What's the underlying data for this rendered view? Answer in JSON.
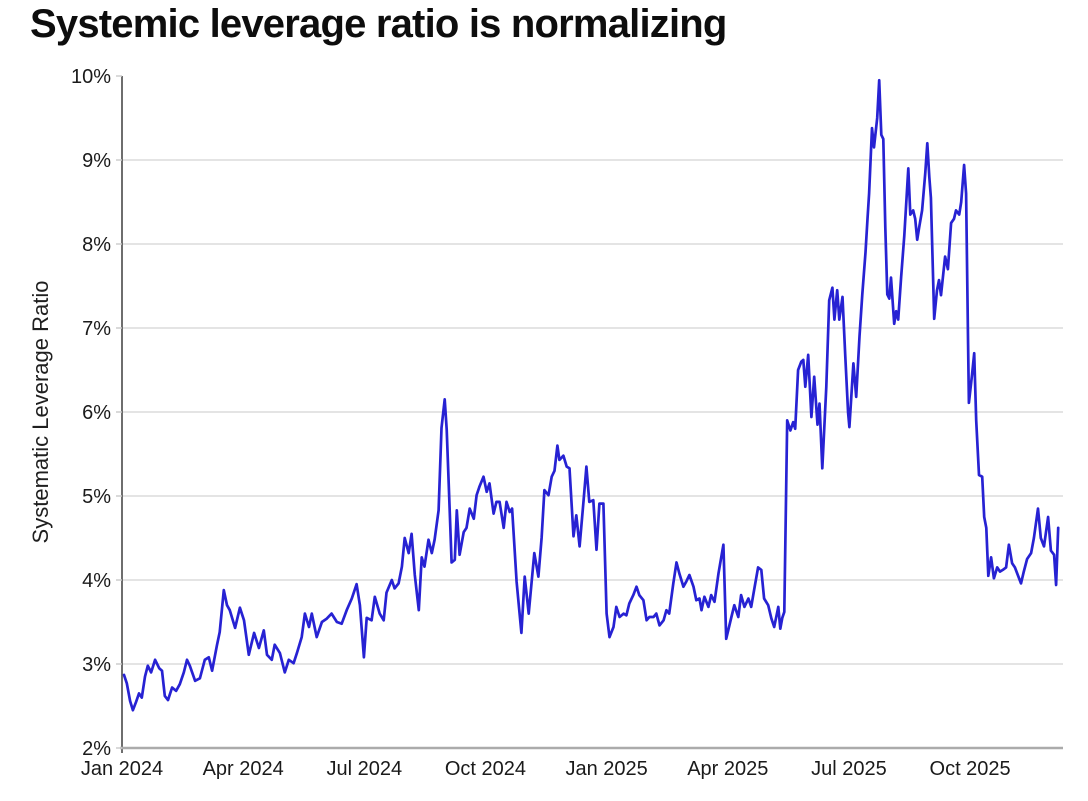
{
  "title": "Systemic leverage ratio is normalizing",
  "colors": {
    "line": "#2722d3",
    "grid": "#e4e4e4",
    "y_axis": "#4a4a4a",
    "x_axis": "#ababab",
    "tick": "#c9c9c9",
    "text": "#1a1a1a",
    "background": "#ffffff"
  },
  "chart_data": {
    "type": "line",
    "title": "Systemic leverage ratio is normalizing",
    "xlabel": "",
    "ylabel": "Systematic Leverage Ratio",
    "x_unit": "months since Jan 2024",
    "xlim": [
      0,
      23.3
    ],
    "ylim": [
      2,
      10
    ],
    "grid": "horizontal gridlines at each 1% from 3% to 9%",
    "legend": "none",
    "x_ticks": [
      {
        "t": 0,
        "label": "Jan 2024"
      },
      {
        "t": 3,
        "label": "Apr 2024"
      },
      {
        "t": 6,
        "label": "Jul 2024"
      },
      {
        "t": 9,
        "label": "Oct 2024"
      },
      {
        "t": 12,
        "label": "Jan 2025"
      },
      {
        "t": 15,
        "label": "Apr 2025"
      },
      {
        "t": 18,
        "label": "Jul 2025"
      },
      {
        "t": 21,
        "label": "Oct 2025"
      }
    ],
    "y_ticks": [
      {
        "v": 2,
        "label": "2%"
      },
      {
        "v": 3,
        "label": "3%"
      },
      {
        "v": 4,
        "label": "4%"
      },
      {
        "v": 5,
        "label": "5%"
      },
      {
        "v": 6,
        "label": "6%"
      },
      {
        "v": 7,
        "label": "7%"
      },
      {
        "v": 8,
        "label": "8%"
      },
      {
        "v": 9,
        "label": "9%"
      },
      {
        "v": 10,
        "label": "10%"
      }
    ],
    "series": [
      {
        "name": "Systematic Leverage Ratio",
        "color": "#2722d3",
        "points": [
          [
            0.05,
            2.87
          ],
          [
            0.12,
            2.77
          ],
          [
            0.2,
            2.56
          ],
          [
            0.27,
            2.45
          ],
          [
            0.35,
            2.55
          ],
          [
            0.42,
            2.65
          ],
          [
            0.49,
            2.6
          ],
          [
            0.57,
            2.85
          ],
          [
            0.64,
            2.98
          ],
          [
            0.72,
            2.9
          ],
          [
            0.82,
            3.05
          ],
          [
            0.92,
            2.95
          ],
          [
            0.99,
            2.92
          ],
          [
            1.06,
            2.62
          ],
          [
            1.14,
            2.57
          ],
          [
            1.24,
            2.72
          ],
          [
            1.34,
            2.68
          ],
          [
            1.43,
            2.76
          ],
          [
            1.53,
            2.9
          ],
          [
            1.61,
            3.05
          ],
          [
            1.68,
            2.98
          ],
          [
            1.81,
            2.8
          ],
          [
            1.93,
            2.83
          ],
          [
            2.05,
            3.05
          ],
          [
            2.15,
            3.08
          ],
          [
            2.23,
            2.92
          ],
          [
            2.35,
            3.22
          ],
          [
            2.42,
            3.38
          ],
          [
            2.52,
            3.88
          ],
          [
            2.6,
            3.7
          ],
          [
            2.67,
            3.64
          ],
          [
            2.8,
            3.43
          ],
          [
            2.92,
            3.67
          ],
          [
            3.02,
            3.52
          ],
          [
            3.14,
            3.11
          ],
          [
            3.27,
            3.37
          ],
          [
            3.39,
            3.19
          ],
          [
            3.51,
            3.4
          ],
          [
            3.59,
            3.11
          ],
          [
            3.71,
            3.05
          ],
          [
            3.78,
            3.23
          ],
          [
            3.91,
            3.13
          ],
          [
            4.03,
            2.9
          ],
          [
            4.13,
            3.05
          ],
          [
            4.25,
            3.01
          ],
          [
            4.33,
            3.13
          ],
          [
            4.45,
            3.32
          ],
          [
            4.53,
            3.6
          ],
          [
            4.63,
            3.44
          ],
          [
            4.7,
            3.6
          ],
          [
            4.82,
            3.32
          ],
          [
            4.95,
            3.5
          ],
          [
            5.07,
            3.54
          ],
          [
            5.19,
            3.6
          ],
          [
            5.32,
            3.5
          ],
          [
            5.44,
            3.48
          ],
          [
            5.57,
            3.65
          ],
          [
            5.69,
            3.78
          ],
          [
            5.81,
            3.95
          ],
          [
            5.89,
            3.7
          ],
          [
            5.99,
            3.08
          ],
          [
            6.06,
            3.55
          ],
          [
            6.18,
            3.52
          ],
          [
            6.26,
            3.8
          ],
          [
            6.38,
            3.6
          ],
          [
            6.48,
            3.52
          ],
          [
            6.55,
            3.85
          ],
          [
            6.68,
            4.0
          ],
          [
            6.75,
            3.9
          ],
          [
            6.85,
            3.96
          ],
          [
            6.93,
            4.16
          ],
          [
            7.0,
            4.5
          ],
          [
            7.1,
            4.32
          ],
          [
            7.17,
            4.55
          ],
          [
            7.25,
            4.06
          ],
          [
            7.35,
            3.64
          ],
          [
            7.42,
            4.27
          ],
          [
            7.49,
            4.16
          ],
          [
            7.59,
            4.48
          ],
          [
            7.67,
            4.32
          ],
          [
            7.74,
            4.48
          ],
          [
            7.84,
            4.83
          ],
          [
            7.91,
            5.81
          ],
          [
            7.99,
            6.15
          ],
          [
            8.04,
            5.79
          ],
          [
            8.09,
            5.15
          ],
          [
            8.16,
            4.21
          ],
          [
            8.24,
            4.24
          ],
          [
            8.29,
            4.83
          ],
          [
            8.36,
            4.3
          ],
          [
            8.46,
            4.57
          ],
          [
            8.53,
            4.62
          ],
          [
            8.61,
            4.85
          ],
          [
            8.71,
            4.73
          ],
          [
            8.78,
            5.01
          ],
          [
            8.85,
            5.11
          ],
          [
            8.95,
            5.23
          ],
          [
            9.03,
            5.05
          ],
          [
            9.1,
            5.15
          ],
          [
            9.2,
            4.79
          ],
          [
            9.27,
            4.93
          ],
          [
            9.35,
            4.93
          ],
          [
            9.45,
            4.62
          ],
          [
            9.52,
            4.93
          ],
          [
            9.6,
            4.81
          ],
          [
            9.66,
            4.85
          ],
          [
            9.77,
            3.98
          ],
          [
            9.89,
            3.37
          ],
          [
            9.97,
            4.04
          ],
          [
            10.07,
            3.6
          ],
          [
            10.21,
            4.32
          ],
          [
            10.31,
            4.04
          ],
          [
            10.39,
            4.5
          ],
          [
            10.46,
            5.07
          ],
          [
            10.56,
            5.01
          ],
          [
            10.64,
            5.23
          ],
          [
            10.71,
            5.3
          ],
          [
            10.78,
            5.6
          ],
          [
            10.83,
            5.43
          ],
          [
            10.93,
            5.48
          ],
          [
            11.01,
            5.35
          ],
          [
            11.08,
            5.33
          ],
          [
            11.18,
            4.52
          ],
          [
            11.25,
            4.77
          ],
          [
            11.33,
            4.4
          ],
          [
            11.43,
            4.95
          ],
          [
            11.5,
            5.35
          ],
          [
            11.57,
            4.93
          ],
          [
            11.67,
            4.95
          ],
          [
            11.75,
            4.36
          ],
          [
            11.82,
            4.91
          ],
          [
            11.92,
            4.91
          ],
          [
            12.0,
            3.6
          ],
          [
            12.07,
            3.32
          ],
          [
            12.17,
            3.44
          ],
          [
            12.24,
            3.68
          ],
          [
            12.32,
            3.56
          ],
          [
            12.42,
            3.6
          ],
          [
            12.49,
            3.58
          ],
          [
            12.56,
            3.72
          ],
          [
            12.66,
            3.82
          ],
          [
            12.74,
            3.92
          ],
          [
            12.81,
            3.82
          ],
          [
            12.91,
            3.76
          ],
          [
            12.99,
            3.52
          ],
          [
            13.06,
            3.56
          ],
          [
            13.16,
            3.56
          ],
          [
            13.23,
            3.6
          ],
          [
            13.31,
            3.46
          ],
          [
            13.41,
            3.52
          ],
          [
            13.48,
            3.64
          ],
          [
            13.55,
            3.6
          ],
          [
            13.65,
            3.96
          ],
          [
            13.73,
            4.21
          ],
          [
            13.8,
            4.08
          ],
          [
            13.9,
            3.92
          ],
          [
            13.97,
            3.98
          ],
          [
            14.05,
            4.06
          ],
          [
            14.15,
            3.92
          ],
          [
            14.22,
            3.76
          ],
          [
            14.3,
            3.78
          ],
          [
            14.35,
            3.64
          ],
          [
            14.42,
            3.8
          ],
          [
            14.52,
            3.68
          ],
          [
            14.59,
            3.82
          ],
          [
            14.67,
            3.74
          ],
          [
            14.77,
            4.08
          ],
          [
            14.89,
            4.42
          ],
          [
            14.96,
            3.3
          ],
          [
            15.09,
            3.56
          ],
          [
            15.16,
            3.7
          ],
          [
            15.26,
            3.56
          ],
          [
            15.33,
            3.82
          ],
          [
            15.41,
            3.68
          ],
          [
            15.51,
            3.78
          ],
          [
            15.58,
            3.68
          ],
          [
            15.66,
            3.9
          ],
          [
            15.75,
            4.15
          ],
          [
            15.83,
            4.12
          ],
          [
            15.9,
            3.78
          ],
          [
            16.0,
            3.7
          ],
          [
            16.08,
            3.54
          ],
          [
            16.15,
            3.44
          ],
          [
            16.25,
            3.68
          ],
          [
            16.3,
            3.42
          ],
          [
            16.35,
            3.55
          ],
          [
            16.4,
            3.62
          ],
          [
            16.47,
            5.9
          ],
          [
            16.55,
            5.78
          ],
          [
            16.62,
            5.88
          ],
          [
            16.67,
            5.8
          ],
          [
            16.74,
            6.5
          ],
          [
            16.82,
            6.6
          ],
          [
            16.87,
            6.62
          ],
          [
            16.92,
            6.3
          ],
          [
            16.99,
            6.68
          ],
          [
            17.07,
            5.94
          ],
          [
            17.14,
            6.42
          ],
          [
            17.22,
            5.85
          ],
          [
            17.27,
            6.1
          ],
          [
            17.34,
            5.33
          ],
          [
            17.44,
            6.3
          ],
          [
            17.51,
            7.33
          ],
          [
            17.59,
            7.48
          ],
          [
            17.64,
            7.1
          ],
          [
            17.71,
            7.45
          ],
          [
            17.76,
            7.1
          ],
          [
            17.84,
            7.37
          ],
          [
            17.91,
            6.66
          ],
          [
            17.98,
            5.99
          ],
          [
            18.01,
            5.82
          ],
          [
            18.11,
            6.58
          ],
          [
            18.18,
            6.18
          ],
          [
            18.26,
            6.9
          ],
          [
            18.33,
            7.4
          ],
          [
            18.41,
            7.9
          ],
          [
            18.46,
            8.3
          ],
          [
            18.5,
            8.6
          ],
          [
            18.57,
            9.38
          ],
          [
            18.62,
            9.15
          ],
          [
            18.7,
            9.5
          ],
          [
            18.75,
            9.95
          ],
          [
            18.8,
            9.3
          ],
          [
            18.85,
            9.25
          ],
          [
            18.9,
            8.2
          ],
          [
            18.95,
            7.4
          ],
          [
            19.0,
            7.35
          ],
          [
            19.04,
            7.6
          ],
          [
            19.12,
            7.05
          ],
          [
            19.17,
            7.2
          ],
          [
            19.22,
            7.1
          ],
          [
            19.29,
            7.6
          ],
          [
            19.37,
            8.1
          ],
          [
            19.47,
            8.9
          ],
          [
            19.52,
            8.35
          ],
          [
            19.59,
            8.4
          ],
          [
            19.64,
            8.3
          ],
          [
            19.69,
            8.05
          ],
          [
            19.74,
            8.2
          ],
          [
            19.81,
            8.4
          ],
          [
            19.89,
            8.85
          ],
          [
            19.94,
            9.2
          ],
          [
            19.99,
            8.8
          ],
          [
            20.03,
            8.55
          ],
          [
            20.11,
            7.11
          ],
          [
            20.18,
            7.45
          ],
          [
            20.23,
            7.57
          ],
          [
            20.28,
            7.39
          ],
          [
            20.38,
            7.85
          ],
          [
            20.45,
            7.7
          ],
          [
            20.53,
            8.25
          ],
          [
            20.6,
            8.3
          ],
          [
            20.65,
            8.4
          ],
          [
            20.73,
            8.35
          ],
          [
            20.78,
            8.5
          ],
          [
            20.85,
            8.94
          ],
          [
            20.9,
            8.6
          ],
          [
            20.95,
            6.8
          ],
          [
            20.97,
            6.11
          ],
          [
            21.05,
            6.45
          ],
          [
            21.1,
            6.7
          ],
          [
            21.15,
            5.9
          ],
          [
            21.22,
            5.25
          ],
          [
            21.3,
            5.23
          ],
          [
            21.35,
            4.75
          ],
          [
            21.4,
            4.62
          ],
          [
            21.45,
            4.05
          ],
          [
            21.52,
            4.27
          ],
          [
            21.59,
            4.02
          ],
          [
            21.67,
            4.15
          ],
          [
            21.74,
            4.1
          ],
          [
            21.81,
            4.12
          ],
          [
            21.89,
            4.15
          ],
          [
            21.96,
            4.42
          ],
          [
            22.04,
            4.2
          ],
          [
            22.11,
            4.15
          ],
          [
            22.18,
            4.06
          ],
          [
            22.26,
            3.96
          ],
          [
            22.33,
            4.1
          ],
          [
            22.41,
            4.25
          ],
          [
            22.51,
            4.32
          ],
          [
            22.58,
            4.5
          ],
          [
            22.68,
            4.85
          ],
          [
            22.75,
            4.5
          ],
          [
            22.83,
            4.4
          ],
          [
            22.93,
            4.75
          ],
          [
            23.0,
            4.35
          ],
          [
            23.08,
            4.3
          ],
          [
            23.13,
            3.94
          ],
          [
            23.18,
            4.62
          ]
        ]
      }
    ]
  }
}
